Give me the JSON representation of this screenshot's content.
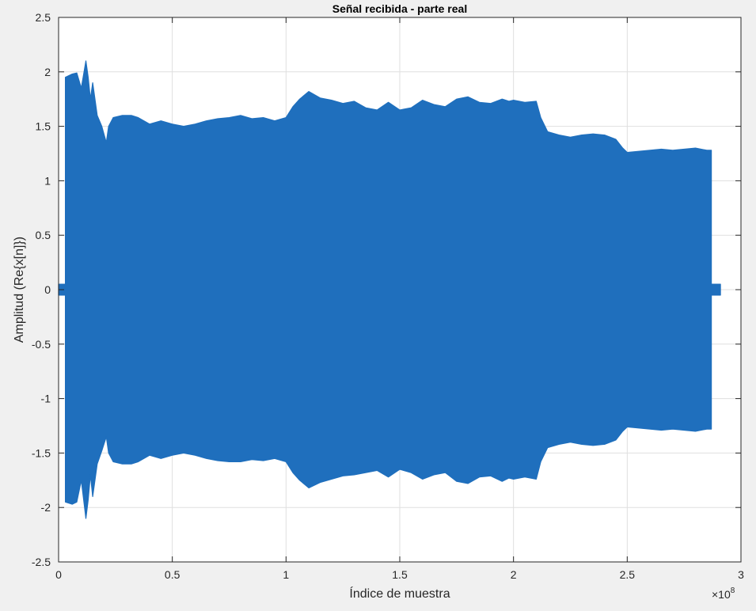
{
  "chart_data": {
    "type": "area",
    "title": "Señal recibida - parte real",
    "xlabel": "Índice de muestra",
    "ylabel": "Amplitud  (Re{x[n]})",
    "x_exponent_label": "×10",
    "x_exponent_power": "8",
    "xlim": [
      0,
      3
    ],
    "ylim": [
      -2.5,
      2.5
    ],
    "x_ticks": [
      0,
      0.5,
      1,
      1.5,
      2,
      2.5,
      3
    ],
    "x_tick_labels": [
      "0",
      "0.5",
      "1",
      "1.5",
      "2",
      "2.5",
      "3"
    ],
    "y_ticks": [
      2.5,
      2,
      1.5,
      1,
      0.5,
      0,
      -0.5,
      -1,
      -1.5,
      -2,
      -2.5
    ],
    "y_tick_labels": [
      "2.5",
      "2",
      "1.5",
      "1",
      "0.5",
      "0",
      "-0.5",
      "-1",
      "-1.5",
      "-2",
      "-2.5"
    ],
    "grid": true,
    "series": [
      {
        "color": "#1f6fbd",
        "envelope_x": [
          0,
          0.03,
          0.03,
          0.06,
          0.08,
          0.1,
          0.12,
          0.13,
          0.14,
          0.15,
          0.17,
          0.19,
          0.21,
          0.22,
          0.24,
          0.28,
          0.32,
          0.35,
          0.4,
          0.45,
          0.5,
          0.55,
          0.6,
          0.65,
          0.7,
          0.75,
          0.8,
          0.85,
          0.9,
          0.95,
          1.0,
          1.03,
          1.06,
          1.1,
          1.15,
          1.2,
          1.25,
          1.3,
          1.35,
          1.4,
          1.45,
          1.5,
          1.55,
          1.6,
          1.65,
          1.7,
          1.75,
          1.8,
          1.85,
          1.9,
          1.95,
          1.98,
          2.0,
          2.05,
          2.1,
          2.12,
          2.15,
          2.2,
          2.25,
          2.3,
          2.35,
          2.4,
          2.45,
          2.48,
          2.5,
          2.55,
          2.6,
          2.65,
          2.7,
          2.75,
          2.8,
          2.85,
          2.87,
          2.87,
          2.91
        ],
        "envelope_upper": [
          0.05,
          0.05,
          1.95,
          1.98,
          1.99,
          1.85,
          2.1,
          1.95,
          1.75,
          1.9,
          1.6,
          1.5,
          1.35,
          1.5,
          1.58,
          1.6,
          1.6,
          1.58,
          1.52,
          1.55,
          1.52,
          1.5,
          1.52,
          1.55,
          1.57,
          1.58,
          1.6,
          1.57,
          1.58,
          1.55,
          1.58,
          1.68,
          1.75,
          1.82,
          1.76,
          1.74,
          1.71,
          1.73,
          1.67,
          1.65,
          1.72,
          1.65,
          1.67,
          1.74,
          1.7,
          1.68,
          1.75,
          1.77,
          1.72,
          1.71,
          1.75,
          1.73,
          1.74,
          1.72,
          1.73,
          1.58,
          1.45,
          1.42,
          1.4,
          1.42,
          1.43,
          1.42,
          1.38,
          1.3,
          1.26,
          1.27,
          1.28,
          1.29,
          1.28,
          1.29,
          1.3,
          1.28,
          1.28,
          0.05,
          0.05
        ],
        "envelope_lower": [
          -0.05,
          -0.05,
          -1.95,
          -1.97,
          -1.95,
          -1.75,
          -2.1,
          -1.93,
          -1.7,
          -1.9,
          -1.6,
          -1.48,
          -1.35,
          -1.5,
          -1.58,
          -1.6,
          -1.6,
          -1.58,
          -1.52,
          -1.55,
          -1.52,
          -1.5,
          -1.52,
          -1.55,
          -1.57,
          -1.58,
          -1.58,
          -1.56,
          -1.57,
          -1.55,
          -1.58,
          -1.68,
          -1.75,
          -1.82,
          -1.77,
          -1.74,
          -1.71,
          -1.7,
          -1.68,
          -1.66,
          -1.72,
          -1.65,
          -1.68,
          -1.74,
          -1.7,
          -1.68,
          -1.76,
          -1.78,
          -1.72,
          -1.71,
          -1.76,
          -1.73,
          -1.74,
          -1.72,
          -1.74,
          -1.58,
          -1.45,
          -1.42,
          -1.4,
          -1.42,
          -1.43,
          -1.42,
          -1.38,
          -1.3,
          -1.26,
          -1.27,
          -1.28,
          -1.29,
          -1.28,
          -1.29,
          -1.3,
          -1.28,
          -1.28,
          -0.05,
          -0.05
        ]
      }
    ]
  }
}
